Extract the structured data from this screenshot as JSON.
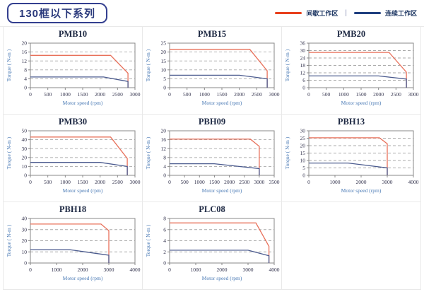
{
  "header": {
    "title": "130框以下系列",
    "legend": {
      "intermittent_label": "间歇工作区",
      "separator": "|",
      "continuous_label": "连续工作区"
    }
  },
  "colors": {
    "accent_navy": "#2b3a7c",
    "legend_red": "#e8401c",
    "legend_blue": "#1f3f7f",
    "curve_red": "#e8705a",
    "curve_blue": "#4a5a8e",
    "grid_gray": "#aaaaaa",
    "axis_border": "#888888",
    "tick_text": "#33334d",
    "axis_label_blue": "#4a7ab5",
    "chart_title": "#1f2a44",
    "cell_border": "#e9e9e9"
  },
  "chart_data": [
    {
      "type": "line",
      "title": "PMB10",
      "xlabel": "Motor speed (rpm)",
      "ylabel": "Torque ( N-m )",
      "xlim": [
        0,
        3000
      ],
      "ylim": [
        0,
        20
      ],
      "xticks": [
        0,
        500,
        1000,
        1500,
        2000,
        2500,
        3000
      ],
      "yticks": [
        0,
        4,
        8,
        12,
        16,
        20
      ],
      "grid": "dashed-horizontal",
      "series": [
        {
          "name": "间歇工作区",
          "color_key": "curve_red",
          "points": [
            [
              0,
              14.5
            ],
            [
              2300,
              14.5
            ],
            [
              2800,
              6.5
            ],
            [
              2800,
              0
            ]
          ]
        },
        {
          "name": "连续工作区",
          "color_key": "curve_blue",
          "points": [
            [
              0,
              4.8
            ],
            [
              2100,
              4.8
            ],
            [
              2800,
              2.8
            ],
            [
              2800,
              0
            ]
          ]
        }
      ]
    },
    {
      "type": "line",
      "title": "PMB15",
      "xlabel": "Motor speed (rpm)",
      "ylabel": "Torque ( N-m )",
      "xlim": [
        0,
        3000
      ],
      "ylim": [
        0,
        25
      ],
      "xticks": [
        0,
        500,
        1000,
        1500,
        2000,
        2500,
        3000
      ],
      "yticks": [
        0,
        5,
        10,
        15,
        20,
        25
      ],
      "grid": "dashed-horizontal",
      "series": [
        {
          "name": "间歇工作区",
          "color_key": "curve_red",
          "points": [
            [
              0,
              21.5
            ],
            [
              2300,
              21.5
            ],
            [
              2800,
              9.5
            ],
            [
              2800,
              0
            ]
          ]
        },
        {
          "name": "连续工作区",
          "color_key": "curve_blue",
          "points": [
            [
              0,
              7
            ],
            [
              2000,
              7
            ],
            [
              2800,
              5
            ],
            [
              2800,
              0
            ]
          ]
        }
      ]
    },
    {
      "type": "line",
      "title": "PMB20",
      "xlabel": "Motor speed (rpm)",
      "ylabel": "Torque ( N-m )",
      "xlim": [
        0,
        3000
      ],
      "ylim": [
        0,
        36
      ],
      "xticks": [
        0,
        500,
        1000,
        1500,
        2000,
        2500,
        3000
      ],
      "yticks": [
        0,
        6,
        12,
        18,
        24,
        30,
        36
      ],
      "grid": "dashed-horizontal",
      "series": [
        {
          "name": "间歇工作区",
          "color_key": "curve_red",
          "points": [
            [
              0,
              28.5
            ],
            [
              2300,
              28.5
            ],
            [
              2800,
              12.5
            ],
            [
              2800,
              0
            ]
          ]
        },
        {
          "name": "连续工作区",
          "color_key": "curve_blue",
          "points": [
            [
              0,
              9.5
            ],
            [
              2000,
              9.5
            ],
            [
              2800,
              7
            ],
            [
              2800,
              0
            ]
          ]
        }
      ]
    },
    {
      "type": "line",
      "title": "PMB30",
      "xlabel": "Motor speed (rpm)",
      "ylabel": "Torque ( N-m )",
      "xlim": [
        0,
        3000
      ],
      "ylim": [
        0,
        50
      ],
      "xticks": [
        0,
        500,
        1000,
        1500,
        2000,
        2500,
        3000
      ],
      "yticks": [
        0,
        10,
        20,
        30,
        40,
        50
      ],
      "grid": "dashed-horizontal",
      "series": [
        {
          "name": "间歇工作区",
          "color_key": "curve_red",
          "points": [
            [
              0,
              43
            ],
            [
              2300,
              43
            ],
            [
              2780,
              19
            ],
            [
              2780,
              0
            ]
          ]
        },
        {
          "name": "连续工作区",
          "color_key": "curve_blue",
          "points": [
            [
              0,
              14.5
            ],
            [
              2000,
              14.5
            ],
            [
              2780,
              10
            ],
            [
              2780,
              0
            ]
          ]
        }
      ]
    },
    {
      "type": "line",
      "title": "PBH09",
      "xlabel": "Motor speed (rpm)",
      "ylabel": "Torque ( N-m )",
      "xlim": [
        0,
        3500
      ],
      "ylim": [
        0,
        20
      ],
      "xticks": [
        0,
        500,
        1000,
        1500,
        2000,
        2500,
        3000,
        3500
      ],
      "yticks": [
        0,
        4,
        8,
        12,
        16,
        20
      ],
      "grid": "dashed-horizontal",
      "series": [
        {
          "name": "间歇工作区",
          "color_key": "curve_red",
          "points": [
            [
              0,
              16.3
            ],
            [
              2700,
              16.3
            ],
            [
              3000,
              13
            ],
            [
              3000,
              0
            ]
          ]
        },
        {
          "name": "连续工作区",
          "color_key": "curve_blue",
          "points": [
            [
              0,
              5.2
            ],
            [
              1500,
              5.2
            ],
            [
              3000,
              3
            ],
            [
              3000,
              0
            ]
          ]
        }
      ]
    },
    {
      "type": "line",
      "title": "PBH13",
      "xlabel": "Motor speed (rpm)",
      "ylabel": "Torque ( N-m )",
      "xlim": [
        0,
        4000
      ],
      "ylim": [
        0,
        30
      ],
      "xticks": [
        0,
        1000,
        2000,
        3000,
        4000
      ],
      "yticks": [
        0,
        5,
        10,
        15,
        20,
        25,
        30
      ],
      "grid": "dashed-horizontal",
      "series": [
        {
          "name": "间歇工作区",
          "color_key": "curve_red",
          "points": [
            [
              0,
              25.3
            ],
            [
              2700,
              25.3
            ],
            [
              3000,
              21.3
            ],
            [
              3000,
              0
            ]
          ]
        },
        {
          "name": "连续工作区",
          "color_key": "curve_blue",
          "points": [
            [
              0,
              8.3
            ],
            [
              1500,
              8.3
            ],
            [
              3000,
              5
            ],
            [
              3000,
              0
            ]
          ]
        }
      ]
    },
    {
      "type": "line",
      "title": "PBH18",
      "xlabel": "Motor speed (rpm)",
      "ylabel": "Torque ( N-m )",
      "xlim": [
        0,
        4000
      ],
      "ylim": [
        0,
        40
      ],
      "xticks": [
        0,
        1000,
        2000,
        3000,
        4000
      ],
      "yticks": [
        0,
        10,
        20,
        30,
        40
      ],
      "grid": "dashed-horizontal",
      "series": [
        {
          "name": "间歇工作区",
          "color_key": "curve_red",
          "points": [
            [
              0,
              35
            ],
            [
              2700,
              35
            ],
            [
              3000,
              29
            ],
            [
              3000,
              0
            ]
          ]
        },
        {
          "name": "连续工作区",
          "color_key": "curve_blue",
          "points": [
            [
              0,
              12
            ],
            [
              1500,
              12
            ],
            [
              3000,
              7
            ],
            [
              3000,
              0
            ]
          ]
        }
      ]
    },
    {
      "type": "line",
      "title": "PLC08",
      "xlabel": "Motor speed (rpm)",
      "ylabel": "Torque ( N-m )",
      "xlim": [
        0,
        4000
      ],
      "ylim": [
        0,
        8
      ],
      "xticks": [
        0,
        1000,
        2000,
        3000,
        4000
      ],
      "yticks": [
        0,
        2,
        4,
        6,
        8
      ],
      "grid": "dashed-horizontal",
      "series": [
        {
          "name": "间歇工作区",
          "color_key": "curve_red",
          "points": [
            [
              0,
              7.2
            ],
            [
              3300,
              7.2
            ],
            [
              3800,
              3
            ],
            [
              3800,
              0
            ]
          ]
        },
        {
          "name": "连续工作区",
          "color_key": "curve_blue",
          "points": [
            [
              0,
              2.3
            ],
            [
              3000,
              2.3
            ],
            [
              3800,
              1.3
            ],
            [
              3800,
              0
            ]
          ]
        }
      ]
    }
  ]
}
